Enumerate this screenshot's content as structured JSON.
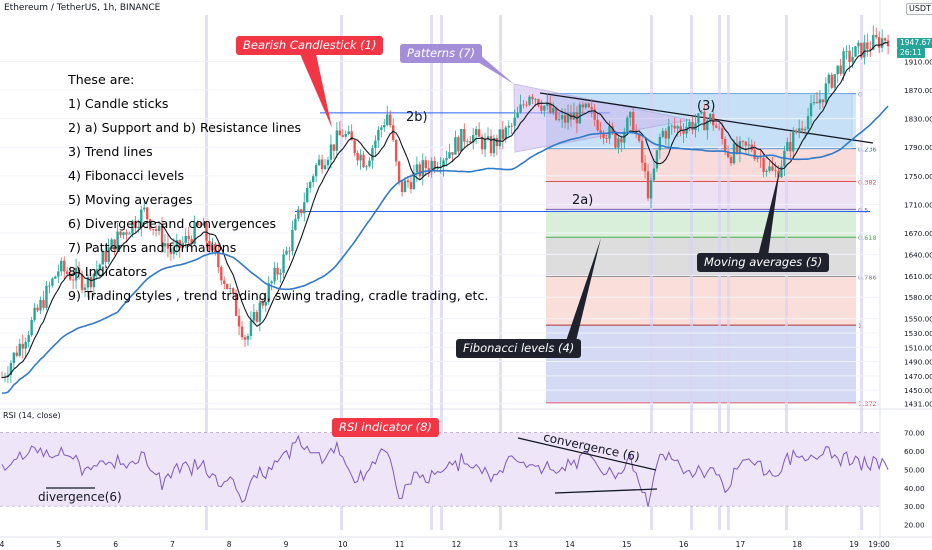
{
  "header": {
    "symbol": "Ethereum / TetherUS, 1h, BINANCE",
    "currency": "USDT"
  },
  "notes": {
    "title": "These are:",
    "items": [
      "1) Candle sticks",
      "2) a) Support and b) Resistance lines",
      "3) Trend lines",
      "4) Fibonacci levels",
      "5) Moving averages",
      "6) Divergence  and convergences",
      "7) Patterns and formations",
      "8) Indicators",
      "9) Trading styles , trend trading, swing trading, cradle trading, etc."
    ]
  },
  "callouts": {
    "bearish": "Bearish Candlestick (1)",
    "patterns": "Patterns (7)",
    "moving_averages": "Moving averages (5)",
    "fibonacci": "Fibonacci levels (4)",
    "rsi": "RSI indicator (8)"
  },
  "labels": {
    "resistance": "2b)",
    "support": "2a)",
    "trend": "(3)",
    "convergence": "convergence (6)",
    "divergence": "divergence(6)"
  },
  "rsi": {
    "title": "RSI (14, close)",
    "ticks": [
      "70.00",
      "60.00",
      "50.00",
      "40.00",
      "30.00",
      "20.00"
    ],
    "upper": 70,
    "lower": 30,
    "range": [
      17,
      78
    ]
  },
  "price": {
    "last": "1947.67",
    "countdown": "26:11",
    "axis_label": "1910.00"
  },
  "colors": {
    "up": "#26a69a",
    "down": "#ef5350",
    "ma_fast": "#131722",
    "ma_slow": "#3179c9",
    "rsi_line": "#7e57c2",
    "rsi_band": "#efe5f9",
    "accent_red": "#f23645",
    "accent_purple": "#a58ed8"
  },
  "chart_data": {
    "type": "candlestick",
    "title": "Ethereum / TetherUS, 1h, BINANCE",
    "x_ticks": [
      "4",
      "5",
      "6",
      "7",
      "8",
      "9",
      "10",
      "11",
      "12",
      "13",
      "14",
      "15",
      "16",
      "17",
      "18",
      "19",
      "19:00"
    ],
    "y_ticks": [
      1910,
      1870,
      1830,
      1790,
      1750,
      1710,
      1670,
      1640,
      1610,
      1580,
      1550,
      1530,
      1510,
      1490,
      1470,
      1450,
      1431
    ],
    "ylim": [
      1425,
      1975
    ],
    "fib_levels": [
      {
        "ratio": "0",
        "price": 1865
      },
      {
        "ratio": "0.236",
        "price": 1788
      },
      {
        "ratio": "0.382",
        "price": 1742
      },
      {
        "ratio": "0.5",
        "price": 1703
      },
      {
        "ratio": "0.618",
        "price": 1664
      },
      {
        "ratio": "0.786",
        "price": 1609
      },
      {
        "ratio": "1",
        "price": 1541
      },
      {
        "ratio": "1.372",
        "price": 1432
      }
    ],
    "resistance_level": 1838,
    "support_level": 1700,
    "path": [
      [
        0,
        1468
      ],
      [
        0.5,
        1540
      ],
      [
        1,
        1620
      ],
      [
        1.5,
        1600
      ],
      [
        2,
        1660
      ],
      [
        2.5,
        1700
      ],
      [
        3,
        1640
      ],
      [
        3.5,
        1680
      ],
      [
        4,
        1590
      ],
      [
        4.3,
        1520
      ],
      [
        4.5,
        1560
      ],
      [
        5,
        1640
      ],
      [
        5.5,
        1760
      ],
      [
        6,
        1810
      ],
      [
        6.4,
        1770
      ],
      [
        6.8,
        1840
      ],
      [
        7,
        1730
      ],
      [
        7.4,
        1760
      ],
      [
        7.8,
        1780
      ],
      [
        8.2,
        1810
      ],
      [
        8.6,
        1790
      ],
      [
        9,
        1820
      ],
      [
        9.3,
        1870
      ],
      [
        9.8,
        1825
      ],
      [
        10.3,
        1840
      ],
      [
        10.8,
        1800
      ],
      [
        11.1,
        1830
      ],
      [
        11.4,
        1720
      ],
      [
        11.6,
        1810
      ],
      [
        12,
        1820
      ],
      [
        12.5,
        1830
      ],
      [
        12.8,
        1780
      ],
      [
        13.2,
        1790
      ],
      [
        13.6,
        1750
      ],
      [
        14,
        1815
      ],
      [
        14.3,
        1845
      ],
      [
        14.8,
        1910
      ],
      [
        15.2,
        1930
      ],
      [
        15.6,
        1945
      ]
    ]
  }
}
